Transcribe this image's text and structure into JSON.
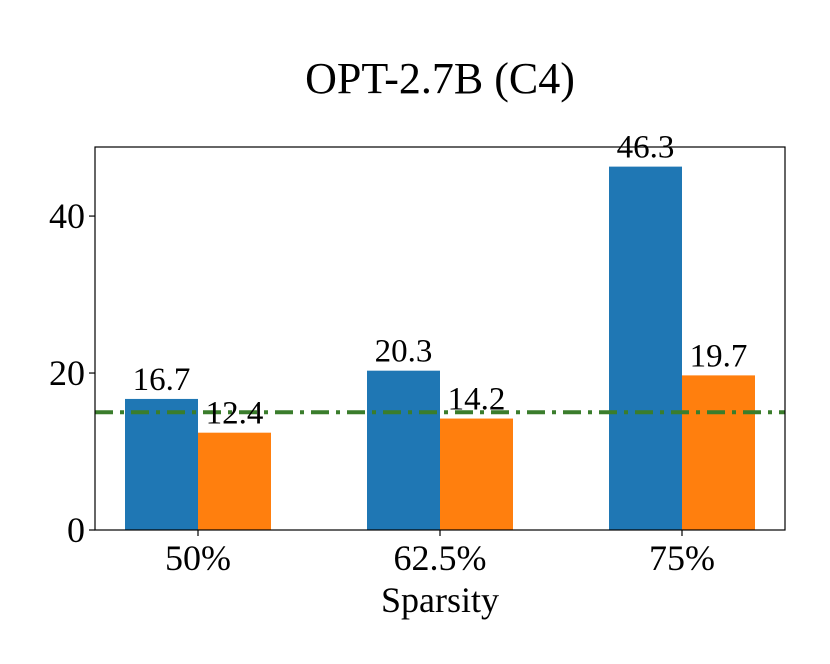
{
  "chart_data": {
    "type": "bar",
    "title": "OPT-2.7B (C4)",
    "xlabel": "Sparsity",
    "ylabel": "",
    "categories": [
      "50%",
      "62.5%",
      "75%"
    ],
    "series": [
      {
        "color": "#1f77b4",
        "values": [
          16.7,
          20.3,
          46.3
        ],
        "labels": [
          "16.7",
          "20.3",
          "46.3"
        ]
      },
      {
        "color": "#ff7f0e",
        "values": [
          12.4,
          14.2,
          19.7
        ],
        "labels": [
          "12.4",
          "14.2",
          "19.7"
        ]
      }
    ],
    "reference_line": {
      "value": 15.0,
      "color": "#3a7d2c",
      "style": "dash-dot"
    },
    "ylim": [
      0,
      48.8
    ],
    "yticks": [
      0,
      20,
      40
    ],
    "grid": false,
    "legend": "none"
  }
}
